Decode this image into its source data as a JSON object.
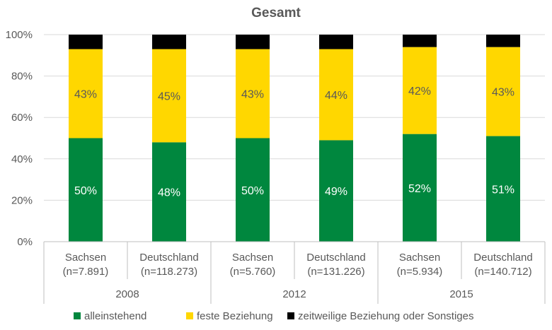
{
  "chart_data": {
    "type": "bar",
    "stacked": true,
    "title": "Gesamt",
    "xlabel": "",
    "ylabel": "",
    "ylim": [
      0,
      100
    ],
    "y_ticks": [
      "0%",
      "20%",
      "40%",
      "60%",
      "80%",
      "100%"
    ],
    "y_tick_values": [
      0,
      20,
      40,
      60,
      80,
      100
    ],
    "groups": [
      {
        "label": "2008",
        "categories": [
          0,
          1
        ]
      },
      {
        "label": "2012",
        "categories": [
          2,
          3
        ]
      },
      {
        "label": "2015",
        "categories": [
          4,
          5
        ]
      }
    ],
    "categories": [
      {
        "name": "Sachsen",
        "n": "(n=7.891)"
      },
      {
        "name": "Deutschland",
        "n": "(n=118.273)"
      },
      {
        "name": "Sachsen",
        "n": "(n=5.760)"
      },
      {
        "name": "Deutschland",
        "n": "(n=131.226)"
      },
      {
        "name": "Sachsen",
        "n": "(n=5.934)"
      },
      {
        "name": "Deutschland",
        "n": "(n=140.712)"
      }
    ],
    "series": [
      {
        "name": "alleinstehend",
        "color": "#00873e",
        "values": [
          50,
          48,
          50,
          49,
          52,
          51
        ],
        "labels": [
          "50%",
          "48%",
          "50%",
          "49%",
          "52%",
          "51%"
        ],
        "label_color": "#ffffff"
      },
      {
        "name": "feste Beziehung",
        "color": "#ffd700",
        "values": [
          43,
          45,
          43,
          44,
          42,
          43
        ],
        "labels": [
          "43%",
          "45%",
          "43%",
          "44%",
          "42%",
          "43%"
        ],
        "label_color": "#595959"
      },
      {
        "name": "zeitweilige Beziehung oder Sonstiges",
        "color": "#000000",
        "values": [
          7,
          7,
          7,
          7,
          6,
          6
        ],
        "labels": [
          "",
          "",
          "",
          "",
          "",
          ""
        ],
        "label_color": "#ffffff"
      }
    ],
    "grid": true,
    "legend_position": "bottom"
  }
}
